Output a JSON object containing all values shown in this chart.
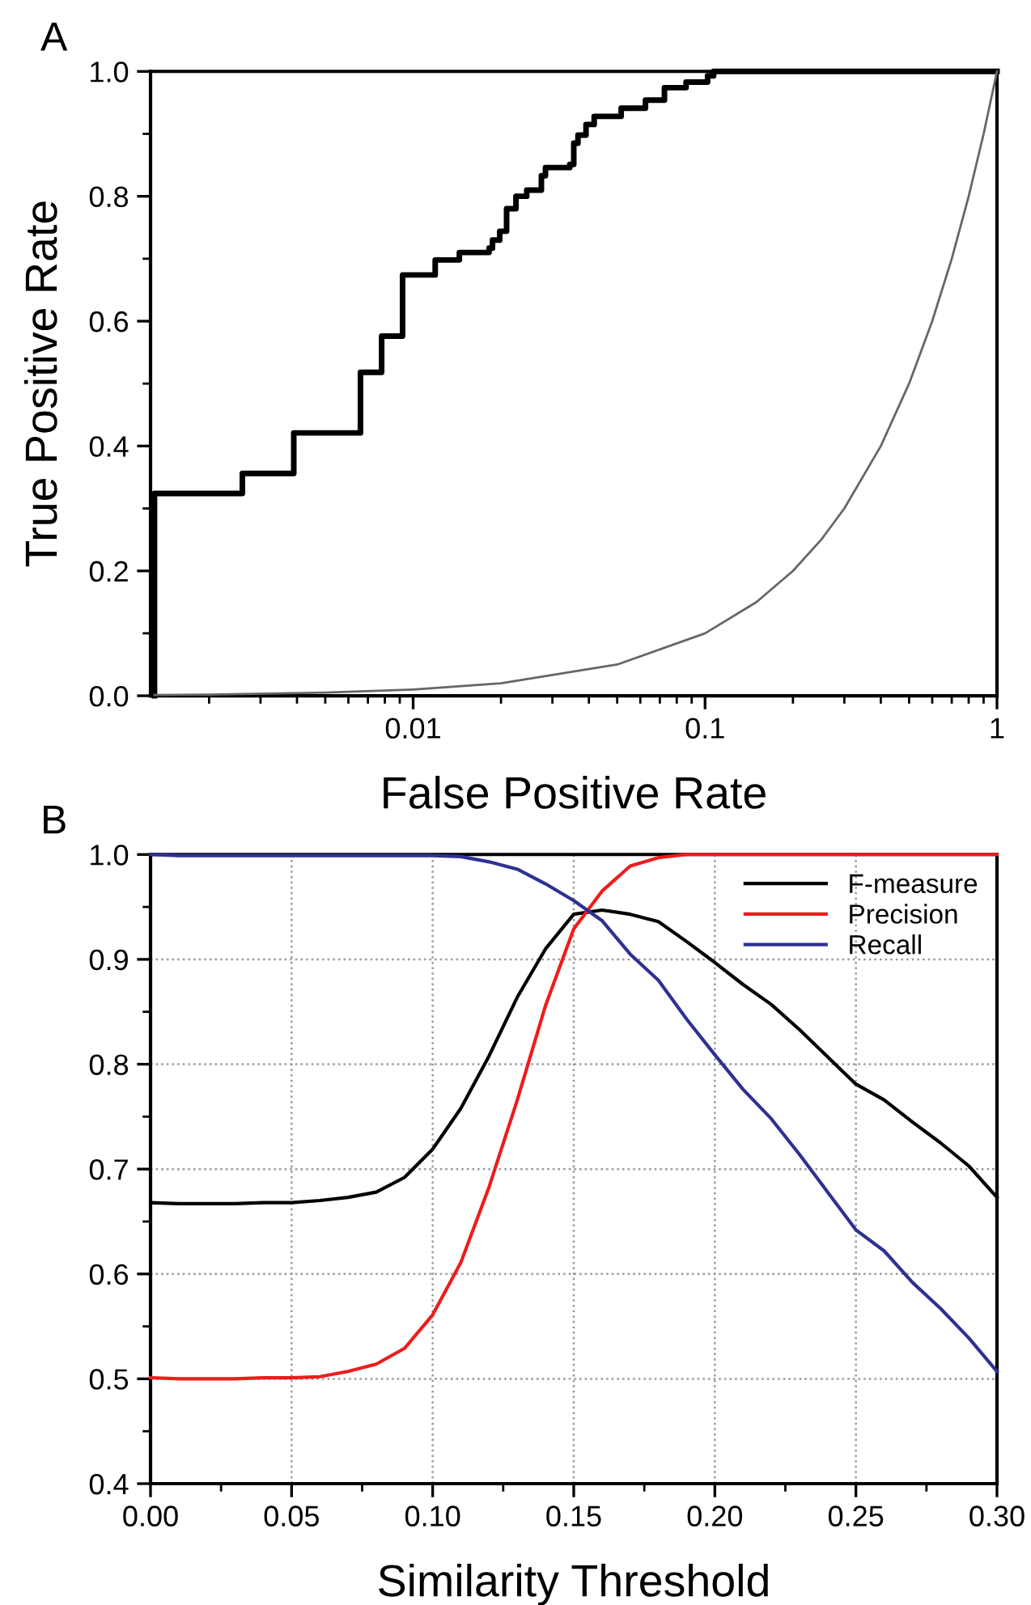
{
  "chart_data": [
    {
      "type": "step",
      "title": "A",
      "xlabel": "False Positive Rate",
      "ylabel": "True Positive Rate",
      "log": "x",
      "grid": false,
      "legend": false,
      "xlim": [
        0.00126,
        1
      ],
      "xticks": [
        0.01,
        0.1,
        1
      ],
      "ylim": [
        0,
        1
      ],
      "yticks": [
        {
          "value": 0,
          "label": "0.0"
        },
        {
          "value": 0.2,
          "label": "0.2"
        },
        {
          "value": 0.4,
          "label": "0.4"
        },
        {
          "value": 0.6,
          "label": "0.6"
        },
        {
          "value": 0.8,
          "label": "0.8"
        },
        {
          "value": 1,
          "label": "1.0"
        }
      ],
      "series": [
        {
          "type": "step",
          "color": "#000000",
          "x": [
            0.0013,
            0.0013,
            0.0026,
            0.0039,
            0.0066,
            0.0078,
            0.0092,
            0.0119,
            0.0144,
            0.0182,
            0.0187,
            0.0198,
            0.0209,
            0.0225,
            0.0245,
            0.0275,
            0.0284,
            0.0344,
            0.0355,
            0.0367,
            0.0391,
            0.0417,
            0.0516,
            0.0625,
            0.0726,
            0.0861,
            0.102,
            0.107,
            1
          ],
          "values": [
            0,
            0.324,
            0.356,
            0.421,
            0.518,
            0.576,
            0.674,
            0.698,
            0.71,
            0.717,
            0.73,
            0.744,
            0.78,
            0.8,
            0.81,
            0.833,
            0.846,
            0.851,
            0.885,
            0.898,
            0.915,
            0.928,
            0.941,
            0.954,
            0.974,
            0.983,
            0.993,
            1.0,
            1.0
          ]
        },
        {
          "type": "line",
          "color": "#666666",
          "x": [
            0.0013,
            0.002,
            0.005,
            0.01,
            0.02,
            0.05,
            0.1,
            0.15,
            0.2,
            0.25,
            0.3,
            0.4,
            0.5,
            0.6,
            0.7,
            0.8,
            0.9,
            1
          ],
          "values": [
            0.0013,
            0.002,
            0.005,
            0.01,
            0.02,
            0.05,
            0.1,
            0.15,
            0.2,
            0.25,
            0.3,
            0.4,
            0.5,
            0.6,
            0.7,
            0.8,
            0.9,
            1
          ]
        }
      ]
    },
    {
      "type": "line",
      "title": "B",
      "xlabel": "Similarity Threshold",
      "grid": true,
      "legend": "top right",
      "x": [
        0.0,
        0.01,
        0.02,
        0.03,
        0.04,
        0.05,
        0.06,
        0.07,
        0.08,
        0.09,
        0.1,
        0.11,
        0.12,
        0.13,
        0.14,
        0.15,
        0.16,
        0.17,
        0.18,
        0.19,
        0.2,
        0.21,
        0.22,
        0.23,
        0.24,
        0.25,
        0.26,
        0.27,
        0.28,
        0.29,
        0.3
      ],
      "xlim": [
        0,
        0.3
      ],
      "xticks": [
        {
          "value": 0,
          "label": "0.00"
        },
        {
          "value": 0.05,
          "label": "0.05"
        },
        {
          "value": 0.1,
          "label": "0.10"
        },
        {
          "value": 0.15,
          "label": "0.15"
        },
        {
          "value": 0.2,
          "label": "0.20"
        },
        {
          "value": 0.25,
          "label": "0.25"
        },
        {
          "value": 0.3,
          "label": "0.30"
        }
      ],
      "ylim": [
        0.4,
        1.0
      ],
      "yticks": [
        0.4,
        0.5,
        0.6,
        0.7,
        0.8,
        0.9,
        {
          "value": 1.0,
          "label": "1.0"
        }
      ],
      "series": [
        {
          "name": "F-measure",
          "color": "#000000",
          "values": [
            0.668,
            0.667,
            0.667,
            0.667,
            0.668,
            0.668,
            0.67,
            0.673,
            0.678,
            0.692,
            0.719,
            0.758,
            0.808,
            0.864,
            0.91,
            0.943,
            0.947,
            0.943,
            0.936,
            0.917,
            0.897,
            0.876,
            0.857,
            0.833,
            0.807,
            0.781,
            0.766,
            0.745,
            0.725,
            0.703,
            0.673
          ]
        },
        {
          "name": "Precision",
          "color": "#ee1c1c",
          "values": [
            0.501,
            0.5,
            0.5,
            0.5,
            0.501,
            0.501,
            0.502,
            0.507,
            0.514,
            0.529,
            0.561,
            0.611,
            0.683,
            0.766,
            0.856,
            0.929,
            0.965,
            0.989,
            0.997,
            1.0,
            1.0,
            1.0,
            1.0,
            1.0,
            1.0,
            1.0,
            1.0,
            1.0,
            1.0,
            1.0,
            1.0
          ]
        },
        {
          "name": "Recall",
          "color": "#2e3192",
          "values": [
            1.0,
            0.999,
            0.999,
            0.999,
            0.999,
            0.999,
            0.999,
            0.999,
            0.999,
            0.999,
            0.999,
            0.998,
            0.993,
            0.986,
            0.972,
            0.956,
            0.937,
            0.905,
            0.88,
            0.843,
            0.809,
            0.776,
            0.748,
            0.714,
            0.678,
            0.642,
            0.622,
            0.592,
            0.567,
            0.539,
            0.507
          ]
        }
      ]
    }
  ]
}
